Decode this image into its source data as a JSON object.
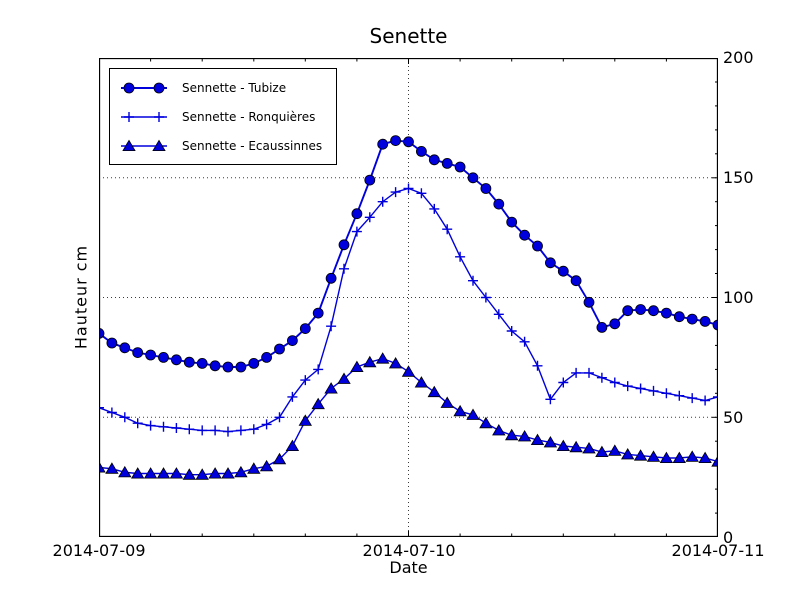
{
  "chart": {
    "title": "Senette",
    "xlabel": "Date",
    "ylabel": "Hauteur cm"
  },
  "chart_data": {
    "type": "line",
    "title": "Senette",
    "xlabel": "Date",
    "ylabel": "Hauteur cm",
    "ylim": [
      0,
      200
    ],
    "y_ticks": [
      "0",
      "50",
      "100",
      "150",
      "200"
    ],
    "x_ticks": [
      {
        "label": "2014-07-09",
        "pos_days": 0
      },
      {
        "label": "2014-07-10",
        "pos_days": 1
      },
      {
        "label": "2014-07-11",
        "pos_days": 2
      }
    ],
    "x_unit": "hours since 2014-07-09 00:00",
    "x_hours": [
      0,
      1,
      2,
      3,
      4,
      5,
      6,
      7,
      8,
      9,
      10,
      11,
      12,
      13,
      14,
      15,
      16,
      17,
      18,
      19,
      20,
      21,
      22,
      23,
      24,
      25,
      26,
      27,
      28,
      29,
      30,
      31,
      32,
      33,
      34,
      35,
      36,
      37,
      38,
      39,
      40,
      41,
      42,
      43,
      44,
      45,
      46,
      47,
      48
    ],
    "grid": {
      "horizontal_at": [
        50,
        100,
        150
      ],
      "vertical_at_days": [
        1
      ],
      "style": "dotted"
    },
    "legend_position": "upper left",
    "axis_color": "#000000",
    "series": [
      {
        "name": "Sennette - Tubize",
        "marker": "circle",
        "color": "#0000dd",
        "values": [
          85,
          81,
          79,
          77,
          76,
          75,
          74,
          73,
          72.5,
          71.5,
          71,
          71,
          72.5,
          75,
          78.5,
          82,
          87,
          93.5,
          108,
          122,
          135,
          149,
          164,
          165.5,
          165,
          161,
          157.5,
          156,
          154.5,
          150,
          145.5,
          139,
          131.5,
          126,
          121.5,
          114.5,
          111,
          107,
          98,
          87.5,
          89,
          94.5,
          95,
          94.5,
          93.5,
          92,
          91,
          90,
          88.5
        ]
      },
      {
        "name": "Sennette - Ronquières",
        "marker": "plus",
        "color": "#0000dd",
        "values": [
          54,
          52,
          50,
          47.5,
          46.5,
          46,
          45.5,
          45,
          44.5,
          44.5,
          44,
          44.5,
          45,
          47,
          50,
          58.5,
          65.5,
          70,
          88,
          112,
          127.5,
          133.5,
          140,
          144,
          145.5,
          143.5,
          137,
          128.5,
          117,
          107,
          100,
          93,
          86,
          81.5,
          71.5,
          57.5,
          64.5,
          68.5,
          68.5,
          66.5,
          64.5,
          63,
          62,
          61,
          60,
          59,
          58,
          57,
          58.5
        ]
      },
      {
        "name": "Sennette - Ecaussinnes",
        "marker": "triangle-up",
        "color": "#0000dd",
        "values": [
          29,
          28.5,
          27,
          26.5,
          26.5,
          26.5,
          26.5,
          26,
          26,
          26.5,
          26.5,
          27,
          28.5,
          29.5,
          32.5,
          38,
          48.5,
          55.5,
          62,
          66,
          71,
          73,
          74.5,
          72.5,
          69,
          64.5,
          60.5,
          56,
          52.5,
          51,
          47.5,
          44.5,
          42.5,
          42,
          40.5,
          39.5,
          38,
          37.5,
          37,
          35.5,
          36,
          34.5,
          34,
          33.5,
          33,
          33,
          33.5,
          33,
          31.5
        ]
      }
    ]
  }
}
